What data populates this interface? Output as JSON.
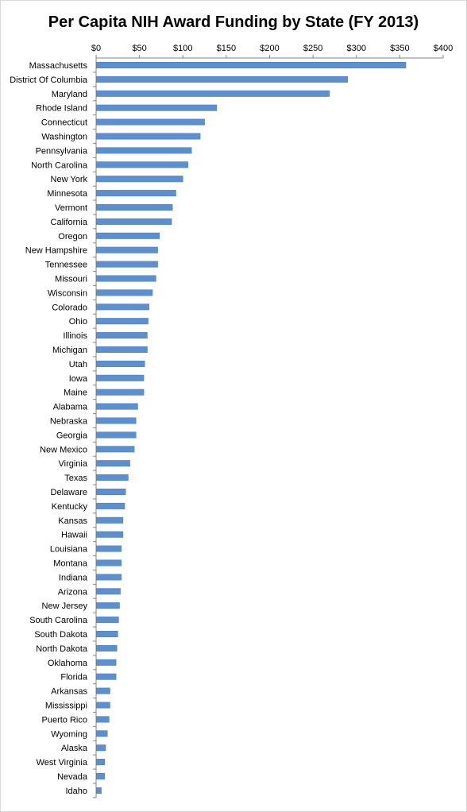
{
  "chart_data": {
    "type": "bar",
    "orientation": "horizontal",
    "title": "Per Capita NIH Award Funding by State (FY 2013)",
    "xlabel": "",
    "ylabel": "",
    "xlim": [
      0,
      400
    ],
    "x_ticks": [
      "$0",
      "$50",
      "$100",
      "$150",
      "$200",
      "$250",
      "$300",
      "$350",
      "$400"
    ],
    "x_axis_position": "top",
    "grid": false,
    "legend": "none",
    "bar_color": "#5b8fd0",
    "categories": [
      "Massachusetts",
      "District Of Columbia",
      "Maryland",
      "Rhode Island",
      "Connecticut",
      "Washington",
      "Pennsylvania",
      "North Carolina",
      "New York",
      "Minnesota",
      "Vermont",
      "California",
      "Oregon",
      "New Hampshire",
      "Tennessee",
      "Missouri",
      "Wisconsin",
      "Colorado",
      "Ohio",
      "Illinois",
      "Michigan",
      "Utah",
      "Iowa",
      "Maine",
      "Alabama",
      "Nebraska",
      "Georgia",
      "New Mexico",
      "Virginia",
      "Texas",
      "Delaware",
      "Kentucky",
      "Kansas",
      "Hawaii",
      "Louisiana",
      "Montana",
      "Indiana",
      "Arizona",
      "New Jersey",
      "South Carolina",
      "South Dakota",
      "North Dakota",
      "Oklahoma",
      "Florida",
      "Arkansas",
      "Mississippi",
      "Puerto Rico",
      "Wyoming",
      "Alaska",
      "West Virginia",
      "Nevada",
      "Idaho"
    ],
    "values": [
      357,
      290,
      269,
      139,
      125,
      120,
      110,
      106,
      100,
      92,
      88,
      87,
      73,
      71,
      71,
      69,
      65,
      61,
      60,
      59,
      59,
      56,
      55,
      55,
      48,
      46,
      46,
      44,
      39,
      37,
      34,
      33,
      31,
      31,
      29,
      29,
      29,
      28,
      27,
      26,
      25,
      24,
      23,
      23,
      16,
      16,
      15,
      13,
      11,
      10,
      10,
      6
    ]
  }
}
